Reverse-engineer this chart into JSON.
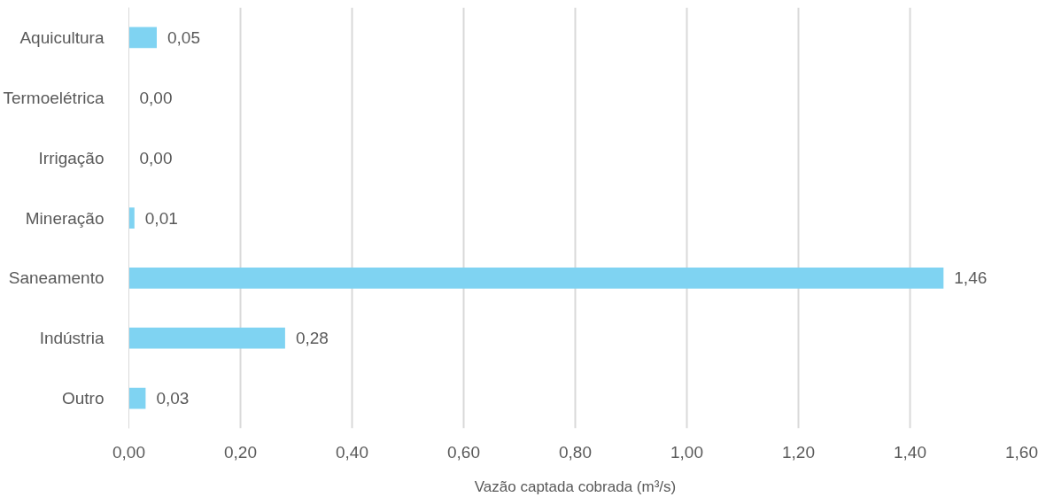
{
  "chart_data": {
    "type": "bar",
    "orientation": "horizontal",
    "xlabel": "Vazão captada cobrada (m³/s)",
    "categories": [
      "Aquicultura",
      "Termoelétrica",
      "Irrigação",
      "Mineração",
      "Saneamento",
      "Indústria",
      "Outro"
    ],
    "values": [
      0.05,
      0.0,
      0.0,
      0.01,
      1.46,
      0.28,
      0.03
    ],
    "value_labels": [
      "0,05",
      "0,00",
      "0,00",
      "0,01",
      "1,46",
      "0,28",
      "0,03"
    ],
    "color": "#7fd3f2",
    "xlim": [
      0,
      1.6
    ],
    "xticks": [
      {
        "value": 0,
        "label": "0,00"
      },
      {
        "value": 0.2,
        "label": "0,20"
      },
      {
        "value": 0.4,
        "label": "0,40"
      },
      {
        "value": 0.6,
        "label": "0,60"
      },
      {
        "value": 0.8,
        "label": "0,80"
      },
      {
        "value": 1.0,
        "label": "1,00"
      },
      {
        "value": 1.2,
        "label": "1,20"
      },
      {
        "value": 1.4,
        "label": "1,40"
      },
      {
        "value": 1.6,
        "label": "1,60"
      }
    ],
    "grid": "x"
  }
}
